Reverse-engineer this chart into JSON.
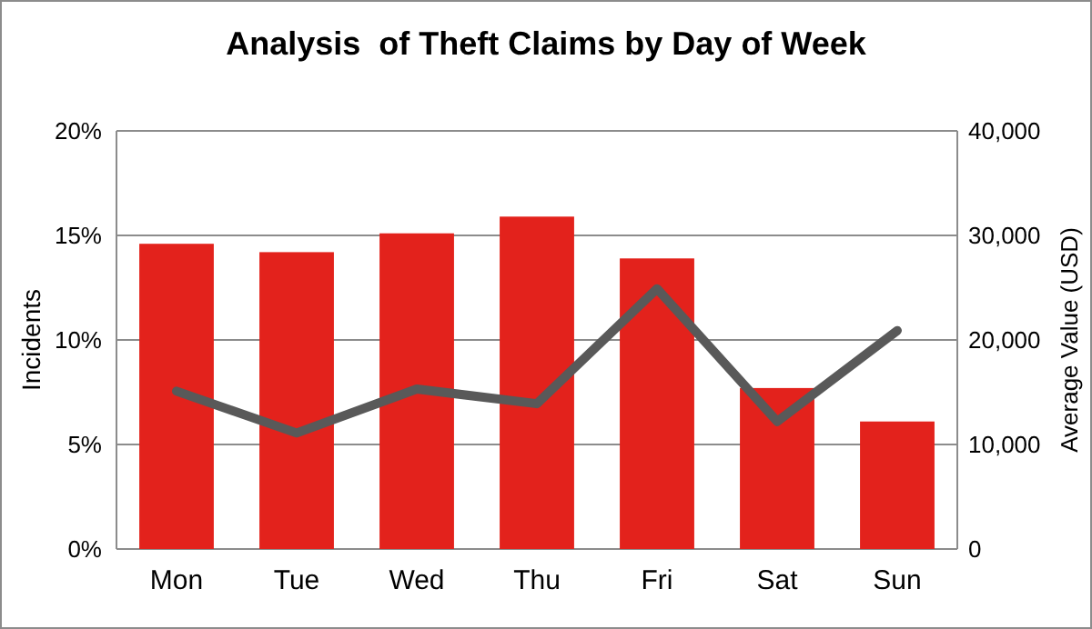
{
  "chart_data": {
    "type": "bar",
    "title": "Analysis  of Theft Claims by Day of Week",
    "ylabel": "Incidents",
    "y2label": "Average Value (USD)",
    "categories": [
      "Mon",
      "Tue",
      "Wed",
      "Thu",
      "Fri",
      "Sat",
      "Sun"
    ],
    "series": [
      {
        "color": "#e3221c",
        "values": [
          14.6,
          14.2,
          15.1,
          15.9,
          13.9,
          7.7,
          6.1
        ]
      },
      {
        "type": "line",
        "axis": "y2",
        "color": "#595959",
        "values": [
          15100,
          11100,
          15300,
          13900,
          24900,
          12200,
          20900
        ],
        "marker": "none"
      }
    ],
    "ylim": [
      0,
      20
    ],
    "yticks": [
      {
        "value": 0,
        "label": "0%"
      },
      {
        "value": 5,
        "label": "5%"
      },
      {
        "value": 10,
        "label": "10%"
      },
      {
        "value": 15,
        "label": "15%"
      },
      {
        "value": 20,
        "label": "20%"
      }
    ],
    "y2lim": [
      0,
      40000
    ],
    "y2ticks": [
      {
        "value": 0,
        "label": "0"
      },
      {
        "value": 10000,
        "label": "10,000"
      },
      {
        "value": 20000,
        "label": "20,000"
      },
      {
        "value": 30000,
        "label": "30,000"
      },
      {
        "value": 40000,
        "label": "40,000"
      }
    ],
    "grid": "y"
  }
}
